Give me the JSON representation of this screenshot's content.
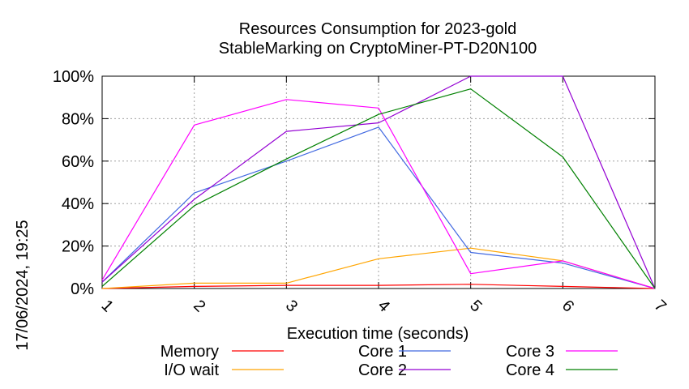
{
  "chart_data": {
    "type": "line",
    "title_line1": "Resources Consumption for 2023-gold",
    "title_line2": "StableMarking on CryptoMiner-PT-D20N100",
    "xlabel": "Execution time (seconds)",
    "ylabel": "",
    "side_label": "17/06/2024, 19:25",
    "x": [
      1,
      2,
      3,
      4,
      5,
      6,
      7
    ],
    "xlim": [
      1,
      7
    ],
    "ylim": [
      0,
      100
    ],
    "x_ticks": [
      "1",
      "2",
      "3",
      "4",
      "5",
      "6",
      "7"
    ],
    "y_ticks": [
      {
        "value": 0,
        "label": "0%"
      },
      {
        "value": 20,
        "label": "20%"
      },
      {
        "value": 40,
        "label": "40%"
      },
      {
        "value": 60,
        "label": "60%"
      },
      {
        "value": 80,
        "label": "80%"
      },
      {
        "value": 100,
        "label": "100%"
      }
    ],
    "grid": true,
    "legend_position": "bottom",
    "series": [
      {
        "name": "Memory",
        "color": "#ff0000",
        "values": [
          0,
          1,
          1.5,
          1.5,
          2,
          1,
          0
        ]
      },
      {
        "name": "I/O wait",
        "color": "#ffa500",
        "values": [
          0,
          2.5,
          2.5,
          14,
          19,
          13,
          0
        ]
      },
      {
        "name": "Core 1",
        "color": "#4169e1",
        "values": [
          3,
          45,
          60,
          76,
          17,
          12,
          0
        ]
      },
      {
        "name": "Core 2",
        "color": "#9400d3",
        "values": [
          3,
          42,
          74,
          78,
          100,
          100,
          0
        ]
      },
      {
        "name": "Core 3",
        "color": "#ff00ff",
        "values": [
          4,
          77,
          89,
          85,
          7,
          13,
          0
        ]
      },
      {
        "name": "Core 4",
        "color": "#008000",
        "values": [
          1,
          39,
          61,
          82,
          94,
          62,
          0
        ]
      }
    ]
  }
}
